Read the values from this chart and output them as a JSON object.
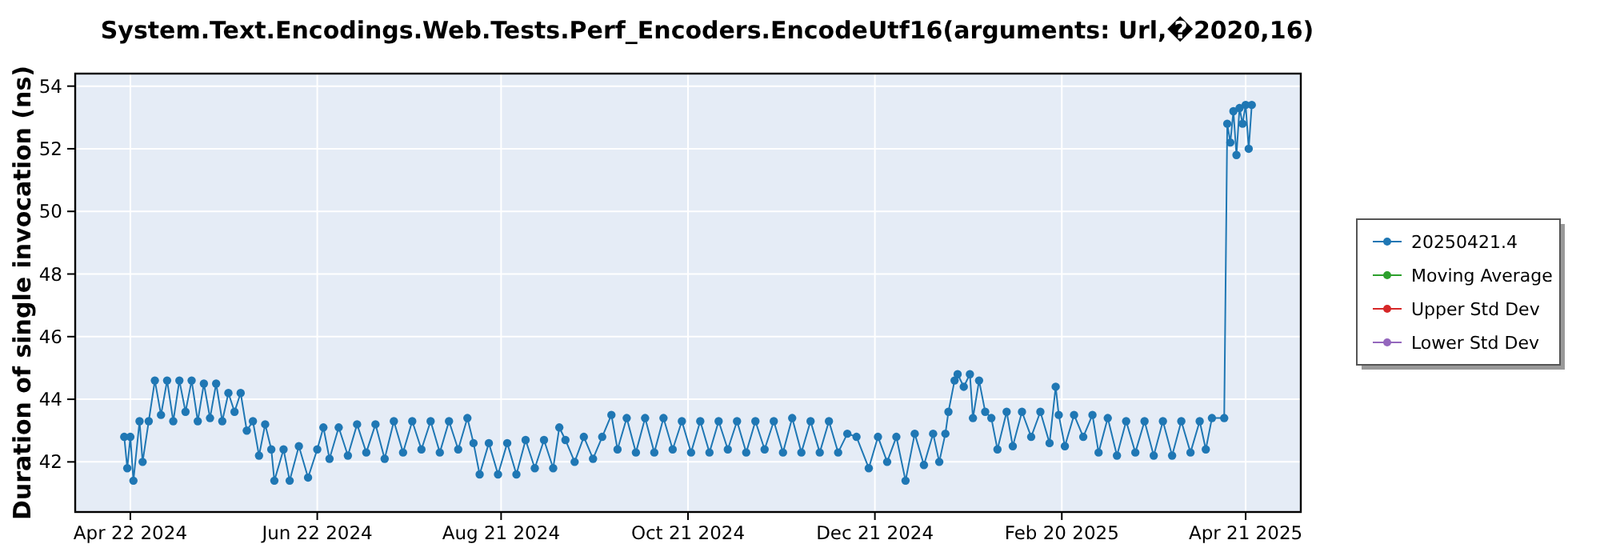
{
  "chart_data": {
    "type": "line",
    "title": "System.Text.Encodings.Web.Tests.Perf_Encoders.EncodeUtf16(arguments: Url,�2020,16)",
    "ylabel": "Duration of single invocation (ns)",
    "xlim": [
      "2024-04-04",
      "2025-05-09"
    ],
    "xticks": [
      {
        "value": "2024-04-22",
        "label": "Apr 22 2024"
      },
      {
        "value": "2024-06-22",
        "label": "Jun 22 2024"
      },
      {
        "value": "2024-08-21",
        "label": "Aug 21 2024"
      },
      {
        "value": "2024-10-21",
        "label": "Oct 21 2024"
      },
      {
        "value": "2024-12-21",
        "label": "Dec 21 2024"
      },
      {
        "value": "2025-02-20",
        "label": "Feb 20 2025"
      },
      {
        "value": "2025-04-21",
        "label": "Apr 21 2025"
      }
    ],
    "ylim": [
      40.4,
      54.4
    ],
    "yticks": [
      42,
      44,
      46,
      48,
      50,
      52,
      54
    ],
    "grid": true,
    "legend": "right",
    "marker": "circle",
    "line_style": "solid",
    "series": [
      {
        "name": "20250421.4",
        "color": "#1f77b4",
        "x": [
          "2024-04-20",
          "2024-04-21",
          "2024-04-22",
          "2024-04-23",
          "2024-04-25",
          "2024-04-26",
          "2024-04-28",
          "2024-04-30",
          "2024-05-02",
          "2024-05-04",
          "2024-05-06",
          "2024-05-08",
          "2024-05-10",
          "2024-05-12",
          "2024-05-14",
          "2024-05-16",
          "2024-05-18",
          "2024-05-20",
          "2024-05-22",
          "2024-05-24",
          "2024-05-26",
          "2024-05-28",
          "2024-05-30",
          "2024-06-01",
          "2024-06-03",
          "2024-06-05",
          "2024-06-07",
          "2024-06-08",
          "2024-06-11",
          "2024-06-13",
          "2024-06-16",
          "2024-06-19",
          "2024-06-22",
          "2024-06-24",
          "2024-06-26",
          "2024-06-29",
          "2024-07-02",
          "2024-07-05",
          "2024-07-08",
          "2024-07-11",
          "2024-07-14",
          "2024-07-17",
          "2024-07-20",
          "2024-07-23",
          "2024-07-26",
          "2024-07-29",
          "2024-08-01",
          "2024-08-04",
          "2024-08-07",
          "2024-08-10",
          "2024-08-12",
          "2024-08-14",
          "2024-08-17",
          "2024-08-20",
          "2024-08-23",
          "2024-08-26",
          "2024-08-29",
          "2024-09-01",
          "2024-09-04",
          "2024-09-07",
          "2024-09-09",
          "2024-09-11",
          "2024-09-14",
          "2024-09-17",
          "2024-09-20",
          "2024-09-23",
          "2024-09-26",
          "2024-09-28",
          "2024-10-01",
          "2024-10-04",
          "2024-10-07",
          "2024-10-10",
          "2024-10-13",
          "2024-10-16",
          "2024-10-19",
          "2024-10-22",
          "2024-10-25",
          "2024-10-28",
          "2024-10-31",
          "2024-11-03",
          "2024-11-06",
          "2024-11-09",
          "2024-11-12",
          "2024-11-15",
          "2024-11-18",
          "2024-11-21",
          "2024-11-24",
          "2024-11-27",
          "2024-11-30",
          "2024-12-03",
          "2024-12-06",
          "2024-12-09",
          "2024-12-12",
          "2024-12-15",
          "2024-12-19",
          "2024-12-22",
          "2024-12-25",
          "2024-12-28",
          "2024-12-31",
          "2025-01-03",
          "2025-01-06",
          "2025-01-09",
          "2025-01-11",
          "2025-01-13",
          "2025-01-14",
          "2025-01-16",
          "2025-01-17",
          "2025-01-19",
          "2025-01-21",
          "2025-01-22",
          "2025-01-24",
          "2025-01-26",
          "2025-01-28",
          "2025-01-30",
          "2025-02-02",
          "2025-02-04",
          "2025-02-07",
          "2025-02-10",
          "2025-02-13",
          "2025-02-16",
          "2025-02-18",
          "2025-02-19",
          "2025-02-21",
          "2025-02-24",
          "2025-02-27",
          "2025-03-02",
          "2025-03-04",
          "2025-03-07",
          "2025-03-10",
          "2025-03-13",
          "2025-03-16",
          "2025-03-19",
          "2025-03-22",
          "2025-03-25",
          "2025-03-28",
          "2025-03-31",
          "2025-04-03",
          "2025-04-06",
          "2025-04-08",
          "2025-04-10",
          "2025-04-14",
          "2025-04-15",
          "2025-04-16",
          "2025-04-17",
          "2025-04-18",
          "2025-04-19",
          "2025-04-20",
          "2025-04-21",
          "2025-04-22",
          "2025-04-23"
        ],
        "values": [
          42.8,
          41.8,
          42.8,
          41.4,
          43.3,
          42.0,
          43.3,
          44.6,
          43.5,
          44.6,
          43.3,
          44.6,
          43.6,
          44.6,
          43.3,
          44.5,
          43.4,
          44.5,
          43.3,
          44.2,
          43.6,
          44.2,
          43.0,
          43.3,
          42.2,
          43.2,
          42.4,
          41.4,
          42.4,
          41.4,
          42.5,
          41.5,
          42.4,
          43.1,
          42.1,
          43.1,
          42.2,
          43.2,
          42.3,
          43.2,
          42.1,
          43.3,
          42.3,
          43.3,
          42.4,
          43.3,
          42.3,
          43.3,
          42.4,
          43.4,
          42.6,
          41.6,
          42.6,
          41.6,
          42.6,
          41.6,
          42.7,
          41.8,
          42.7,
          41.8,
          43.1,
          42.7,
          42.0,
          42.8,
          42.1,
          42.8,
          43.5,
          42.4,
          43.4,
          42.3,
          43.4,
          42.3,
          43.4,
          42.4,
          43.3,
          42.3,
          43.3,
          42.3,
          43.3,
          42.4,
          43.3,
          42.3,
          43.3,
          42.4,
          43.3,
          42.3,
          43.4,
          42.3,
          43.3,
          42.3,
          43.3,
          42.3,
          42.9,
          42.8,
          41.8,
          42.8,
          42.0,
          42.8,
          41.4,
          42.9,
          41.9,
          42.9,
          42.0,
          42.9,
          43.6,
          44.6,
          44.8,
          44.4,
          44.8,
          43.4,
          44.6,
          43.6,
          43.4,
          42.4,
          43.6,
          42.5,
          43.6,
          42.8,
          43.6,
          42.6,
          44.4,
          43.5,
          42.5,
          43.5,
          42.8,
          43.5,
          42.3,
          43.4,
          42.2,
          43.3,
          42.3,
          43.3,
          42.2,
          43.3,
          42.2,
          43.3,
          42.3,
          43.3,
          42.4,
          43.4,
          43.4,
          52.8,
          52.2,
          53.2,
          51.8,
          53.3,
          52.8,
          53.4,
          52.0,
          53.4
        ]
      },
      {
        "name": "Moving Average",
        "color": "#2ca02c"
      },
      {
        "name": "Upper Std Dev",
        "color": "#d62728"
      },
      {
        "name": "Lower Std Dev",
        "color": "#9467bd"
      }
    ]
  }
}
